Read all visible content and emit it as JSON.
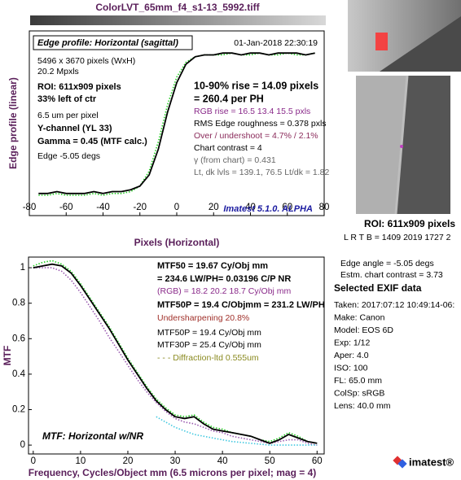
{
  "title": "ColorLVT_65mm_f4_s1-13_5992.tiff",
  "chart_data": [
    {
      "type": "line",
      "title": "Edge profile: Horizontal (sagittal)",
      "date": "01-Jan-2018 22:30:19",
      "x_label": "Pixels (Horizontal)",
      "y_label": "Edge profile (linear)",
      "footer": "Imatest 5.1.0. ALPHA",
      "xlim": [
        -80,
        80
      ],
      "xticks": [
        -80,
        -60,
        -40,
        -20,
        0,
        20,
        40,
        60,
        80
      ],
      "ylim": [
        0,
        1
      ],
      "x": [
        -75,
        -70,
        -65,
        -60,
        -55,
        -50,
        -45,
        -40,
        -35,
        -30,
        -25,
        -20,
        -15,
        -10,
        -5,
        0,
        5,
        10,
        15,
        20,
        25,
        30,
        35,
        40,
        45,
        50,
        55,
        60,
        65,
        70,
        75
      ],
      "series": [
        {
          "color": "#22cc22",
          "style": "dotted",
          "values": [
            0.11,
            0.11,
            0.12,
            0.11,
            0.11,
            0.11,
            0.12,
            0.11,
            0.12,
            0.12,
            0.13,
            0.16,
            0.24,
            0.4,
            0.6,
            0.75,
            0.83,
            0.86,
            0.87,
            0.87,
            0.87,
            0.88,
            0.87,
            0.87,
            0.88,
            0.87,
            0.87,
            0.88,
            0.87,
            0.87,
            0.88
          ]
        },
        {
          "color": "#000000",
          "style": "solid",
          "values": [
            0.12,
            0.12,
            0.13,
            0.12,
            0.12,
            0.12,
            0.13,
            0.12,
            0.13,
            0.13,
            0.14,
            0.16,
            0.22,
            0.36,
            0.56,
            0.72,
            0.82,
            0.86,
            0.87,
            0.87,
            0.88,
            0.88,
            0.87,
            0.88,
            0.88,
            0.87,
            0.88,
            0.88,
            0.88,
            0.87,
            0.88
          ]
        }
      ],
      "notes_left": [
        {
          "text": "5496 x 3670 pixels (WxH)",
          "color": "#000000",
          "style": "plain"
        },
        {
          "text": "20.2 Mpxls",
          "color": "#000000",
          "style": "plain"
        },
        {
          "text": "ROI:  611x909 pixels",
          "color": "#000000",
          "style": "bold"
        },
        {
          "text": "33% left of ctr",
          "color": "#000000",
          "style": "bold"
        },
        {
          "text": "6.5 um per pixel",
          "color": "#000000",
          "style": "plain"
        },
        {
          "text": "Y-channel  (YL 33)",
          "color": "#000000",
          "style": "bold"
        },
        {
          "text": "Gamma = 0.45 (MTF calc.)",
          "color": "#000000",
          "style": "bold"
        },
        {
          "text": "Edge  -5.05 degs",
          "color": "#000000",
          "style": "plain"
        }
      ],
      "notes_right": [
        {
          "text": "10-90% rise = 14.09 pixels",
          "color": "#000000",
          "style": "big"
        },
        {
          "text": " =  260.4 per PH",
          "color": "#000000",
          "style": "big"
        },
        {
          "text": "RGB rise =   16.5    13.4     15.5 pxls",
          "color": "#8a2a8a",
          "style": "plain"
        },
        {
          "text": "RMS Edge roughness =  0.378 pxls",
          "color": "#000000",
          "style": "plain"
        },
        {
          "text": "Over / undershoot =  4.7%  /  2.1%",
          "color": "#8a2a5a",
          "style": "plain"
        },
        {
          "text": "Chart contrast = 4",
          "color": "#000000",
          "style": "plain"
        },
        {
          "text": "γ (from chart) = 0.431",
          "color": "#666666",
          "style": "plain"
        },
        {
          "text": "Lt, dk lvls =  139.1,  76.5   Lt/dk =  1.82",
          "color": "#666666",
          "style": "plain"
        }
      ]
    },
    {
      "type": "line",
      "title": "MTF: Horizontal w/NR",
      "x_label": "Frequency, Cycles/Object mm  (6.5 microns per pixel;  mag = 4)",
      "y_label": "MTF",
      "xlim": [
        -1,
        61.5
      ],
      "xticks": [
        0,
        10,
        20,
        30,
        40,
        50,
        60
      ],
      "ylim": [
        -0.05,
        1.06
      ],
      "yticks": [
        0,
        0.2,
        0.4,
        0.6,
        0.8,
        1
      ],
      "x": [
        0,
        2,
        4,
        6,
        8,
        10,
        12,
        14,
        16,
        18,
        20,
        22,
        24,
        26,
        28,
        30,
        32,
        34,
        36,
        38,
        40,
        42,
        44,
        46,
        48,
        50,
        52,
        54,
        56,
        58,
        60
      ],
      "series": [
        {
          "color": "#9a5ab0",
          "style": "dotted",
          "values": [
            1.0,
            1.0,
            1.0,
            0.98,
            0.93,
            0.86,
            0.78,
            0.7,
            0.61,
            0.53,
            0.45,
            0.37,
            0.3,
            0.24,
            0.19,
            0.15,
            0.13,
            0.12,
            0.1,
            0.08,
            0.07,
            0.05,
            0.04,
            0.03,
            0.02,
            0.01,
            0.02,
            0.03,
            0.03,
            0.01,
            0.0
          ]
        },
        {
          "color": "#40c8e0",
          "style": "dotted",
          "values": [
            null,
            null,
            null,
            null,
            null,
            null,
            null,
            null,
            null,
            null,
            null,
            null,
            null,
            0.16,
            0.13,
            0.1,
            0.08,
            0.06,
            0.05,
            0.04,
            0.03,
            0.02,
            0.015,
            0.01,
            0.005,
            0.0,
            0.0,
            0.0,
            0.0,
            0.0,
            0.0
          ]
        },
        {
          "color": "#22cc22",
          "style": "dotted",
          "values": [
            1.01,
            1.03,
            1.04,
            1.02,
            0.98,
            0.91,
            0.83,
            0.75,
            0.67,
            0.58,
            0.49,
            0.41,
            0.33,
            0.26,
            0.21,
            0.17,
            0.16,
            0.17,
            0.13,
            0.1,
            0.09,
            0.07,
            0.06,
            0.05,
            0.03,
            0.02,
            0.04,
            0.07,
            0.05,
            0.02,
            0.01
          ]
        },
        {
          "color": "#000000",
          "style": "solid",
          "values": [
            1.0,
            1.01,
            1.02,
            1.01,
            0.97,
            0.9,
            0.82,
            0.74,
            0.66,
            0.57,
            0.48,
            0.4,
            0.32,
            0.25,
            0.2,
            0.16,
            0.15,
            0.16,
            0.12,
            0.09,
            0.08,
            0.07,
            0.06,
            0.05,
            0.03,
            0.01,
            0.03,
            0.06,
            0.04,
            0.02,
            0.01
          ]
        }
      ],
      "notes_right": [
        {
          "text": "MTF50 = 19.67 Cy/Obj mm",
          "color": "#000000",
          "style": "bold"
        },
        {
          "text": "= 234.6 LW/PH= 0.03196 C/P  NR",
          "color": "#000000",
          "style": "bold"
        },
        {
          "text": "(RGB) = 18.2  20.2  18.7 Cy/Obj mm",
          "color": "#8a2a8a",
          "style": "plain"
        },
        {
          "text": "MTF50P = 19.4 C/Objmm = 231.2 LW/PH",
          "color": "#000000",
          "style": "bold"
        },
        {
          "text": "Undersharpening 20.8%",
          "color": "#a0302a",
          "style": "plain"
        },
        {
          "text": "MTF50P = 19.4 Cy/Obj mm",
          "color": "#000000",
          "style": "plain"
        },
        {
          "text": "MTF30P = 25.4 Cy/Obj mm",
          "color": "#000000",
          "style": "plain"
        },
        {
          "text": "- - - Diffraction-ltd  0.555um",
          "color": "#8a8a20",
          "style": "plain"
        }
      ]
    }
  ],
  "side": {
    "roi": "ROI:  611x909 pixels",
    "lrtb": "L R  T B = 1409 2019  1727 2",
    "edge_angle": "Edge angle = -5.05 degs",
    "contrast": "Estm. chart contrast = 3.73",
    "exif_title": "Selected EXIF data",
    "exif": [
      "Taken: 2017:07:12 10:49:14-06:",
      "Make:  Canon",
      "Model:  EOS 6D",
      "Exp:    1/12",
      "Aper:   4.0",
      "ISO:    100",
      "FL:      65.0 mm",
      "ColSp:  sRGB",
      "Lens:  40.0 mm"
    ],
    "logo": "imatest®"
  }
}
